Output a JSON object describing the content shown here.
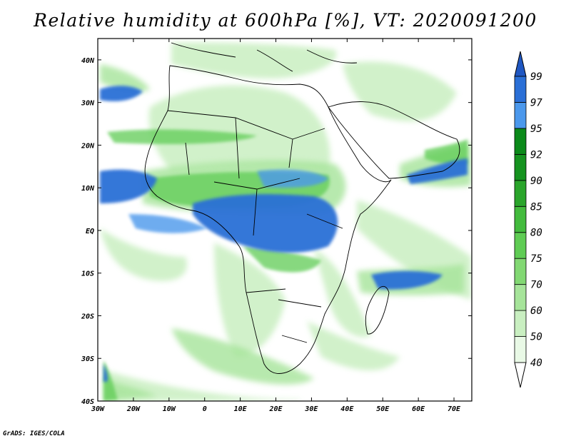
{
  "title": "Relative humidity at 600hPa [%], VT: 2020091200",
  "credit": "GrADS: IGES/COLA",
  "map": {
    "lon_range": [
      -30,
      75
    ],
    "lat_range": [
      -40,
      45
    ],
    "lon_ticks": [
      {
        "value": -30,
        "label": "30W"
      },
      {
        "value": -20,
        "label": "20W"
      },
      {
        "value": -10,
        "label": "10W"
      },
      {
        "value": 0,
        "label": "0"
      },
      {
        "value": 10,
        "label": "10E"
      },
      {
        "value": 20,
        "label": "20E"
      },
      {
        "value": 30,
        "label": "30E"
      },
      {
        "value": 40,
        "label": "40E"
      },
      {
        "value": 50,
        "label": "50E"
      },
      {
        "value": 60,
        "label": "60E"
      },
      {
        "value": 70,
        "label": "70E"
      }
    ],
    "lat_ticks": [
      {
        "value": 40,
        "label": "40N"
      },
      {
        "value": 30,
        "label": "30N"
      },
      {
        "value": 20,
        "label": "20N"
      },
      {
        "value": 10,
        "label": "10N"
      },
      {
        "value": 0,
        "label": "EQ"
      },
      {
        "value": -10,
        "label": "10S"
      },
      {
        "value": -20,
        "label": "20S"
      },
      {
        "value": -30,
        "label": "30S"
      },
      {
        "value": -40,
        "label": "40S"
      }
    ]
  },
  "colorbar": {
    "levels": [
      {
        "value": "40",
        "color": "#e9f9e6"
      },
      {
        "value": "50",
        "color": "#c9efc1"
      },
      {
        "value": "60",
        "color": "#a6e49a"
      },
      {
        "value": "70",
        "color": "#82d873"
      },
      {
        "value": "75",
        "color": "#5fcc54"
      },
      {
        "value": "80",
        "color": "#43bb3d"
      },
      {
        "value": "85",
        "color": "#2aa52b"
      },
      {
        "value": "90",
        "color": "#15931f"
      },
      {
        "value": "92",
        "color": "#0b8a1a"
      },
      {
        "value": "95",
        "color": "#4b98ec"
      },
      {
        "value": "97",
        "color": "#2a6fd6"
      },
      {
        "value": "99",
        "color": "#1f57c2"
      }
    ],
    "low_end_color": "#ffffff",
    "high_end_color": "#1f57c2"
  }
}
